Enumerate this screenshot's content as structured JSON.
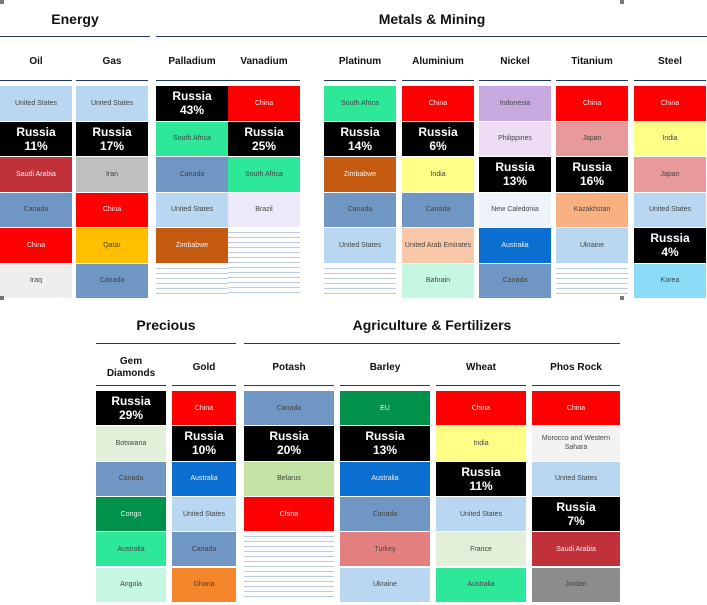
{
  "chart_data": {
    "type": "table",
    "panels": [
      {
        "sections": [
          {
            "title": "Energy"
          },
          {
            "title": "Metals & Mining"
          }
        ],
        "columns": [
          {
            "name": "Oil",
            "cells": [
              {
                "label": "United States",
                "color": "#b9d7f0"
              },
              {
                "label": "Russia",
                "value": "11%",
                "russia": true
              },
              {
                "label": "Saudi Arabia",
                "color": "#c0313a"
              },
              {
                "label": "Canada",
                "color": "#7096c4"
              },
              {
                "label": "China",
                "color": "#ff0000"
              },
              {
                "label": "Iraq",
                "color": "#eeeeee"
              }
            ]
          },
          {
            "name": "Gas",
            "cells": [
              {
                "label": "United States",
                "color": "#b9d7f0"
              },
              {
                "label": "Russia",
                "value": "17%",
                "russia": true
              },
              {
                "label": "Iran",
                "color": "#bfbfbf"
              },
              {
                "label": "China",
                "color": "#ff0000"
              },
              {
                "label": "Qatar",
                "color": "#ffc000"
              },
              {
                "label": "Canada",
                "color": "#7096c4"
              }
            ]
          },
          {
            "name": "Palladium",
            "cells": [
              {
                "label": "Russia",
                "value": "43%",
                "russia": true
              },
              {
                "label": "South Africa",
                "color": "#2ee89a"
              },
              {
                "label": "Canada",
                "color": "#7096c4"
              },
              {
                "label": "United States",
                "color": "#b9d7f0"
              },
              {
                "label": "Zimbabwe",
                "color": "#c55a11"
              }
            ]
          },
          {
            "name": "Vanadium",
            "cells": [
              {
                "label": "China",
                "color": "#ff0000"
              },
              {
                "label": "Russia",
                "value": "25%",
                "russia": true
              },
              {
                "label": "South Africa",
                "color": "#2ee89a"
              },
              {
                "label": "Brazil",
                "color": "#efeafa"
              }
            ]
          },
          {
            "name": "Platinum",
            "cells": [
              {
                "label": "South Africa",
                "color": "#2ee89a"
              },
              {
                "label": "Russia",
                "value": "14%",
                "russia": true
              },
              {
                "label": "Zimbabwe",
                "color": "#c55a11"
              },
              {
                "label": "Canada",
                "color": "#7096c4"
              },
              {
                "label": "United States",
                "color": "#b9d7f0"
              }
            ]
          },
          {
            "name": "Aluminium",
            "cells": [
              {
                "label": "China",
                "color": "#ff0000"
              },
              {
                "label": "Russia",
                "value": "6%",
                "russia": true
              },
              {
                "label": "India",
                "color": "#ffff88"
              },
              {
                "label": "Canada",
                "color": "#7096c4"
              },
              {
                "label": "United Arab Emirates",
                "color": "#f9c8a8"
              },
              {
                "label": "Bahrain",
                "color": "#c6f7e2"
              }
            ]
          },
          {
            "name": "Nickel",
            "cells": [
              {
                "label": "Indonesia",
                "color": "#c7a9e0"
              },
              {
                "label": "Philippines",
                "color": "#eedcf5"
              },
              {
                "label": "Russia",
                "value": "13%",
                "russia": true
              },
              {
                "label": "New Caledonia",
                "color": "#edf2fb"
              },
              {
                "label": "Australia",
                "color": "#0a6fd0"
              },
              {
                "label": "Canada",
                "color": "#7096c4"
              }
            ]
          },
          {
            "name": "Titanium",
            "cells": [
              {
                "label": "China",
                "color": "#ff0000"
              },
              {
                "label": "Japan",
                "color": "#e89a9a"
              },
              {
                "label": "Russia",
                "value": "16%",
                "russia": true
              },
              {
                "label": "Kazakhstan",
                "color": "#f9b080"
              },
              {
                "label": "Ukraine",
                "color": "#b9d7f0"
              }
            ]
          },
          {
            "name": "Steel",
            "cells": [
              {
                "label": "China",
                "color": "#ff0000"
              },
              {
                "label": "India",
                "color": "#ffff88"
              },
              {
                "label": "Japan",
                "color": "#e89a9a"
              },
              {
                "label": "United States",
                "color": "#b9d7f0"
              },
              {
                "label": "Russia",
                "value": "4%",
                "russia": true
              },
              {
                "label": "Korea",
                "color": "#8adcf7"
              }
            ]
          }
        ]
      },
      {
        "sections": [
          {
            "title": "Precious"
          },
          {
            "title": "Agriculture & Fertilizers"
          }
        ],
        "columns": [
          {
            "name": "Gem Diamonds",
            "cells": [
              {
                "label": "Russia",
                "value": "29%",
                "russia": true
              },
              {
                "label": "Botswana",
                "color": "#e2efd9"
              },
              {
                "label": "Canada",
                "color": "#7096c4"
              },
              {
                "label": "Congo",
                "color": "#00914a"
              },
              {
                "label": "Australia",
                "color": "#2ee89a"
              },
              {
                "label": "Angola",
                "color": "#c6f7e2"
              }
            ]
          },
          {
            "name": "Gold",
            "cells": [
              {
                "label": "China",
                "color": "#ff0000"
              },
              {
                "label": "Russia",
                "value": "10%",
                "russia": true
              },
              {
                "label": "Australia",
                "color": "#0a6fd0"
              },
              {
                "label": "United States",
                "color": "#b9d7f0"
              },
              {
                "label": "Canada",
                "color": "#7096c4"
              },
              {
                "label": "Ghana",
                "color": "#f4852a"
              }
            ]
          },
          {
            "name": "Potash",
            "cells": [
              {
                "label": "Canada",
                "color": "#7096c4"
              },
              {
                "label": "Russia",
                "value": "20%",
                "russia": true
              },
              {
                "label": "Belarus",
                "color": "#c3e3a4"
              },
              {
                "label": "China",
                "color": "#ff0000"
              }
            ]
          },
          {
            "name": "Barley",
            "cells": [
              {
                "label": "EU",
                "color": "#00914a"
              },
              {
                "label": "Russia",
                "value": "13%",
                "russia": true
              },
              {
                "label": "Australia",
                "color": "#0a6fd0"
              },
              {
                "label": "Canada",
                "color": "#7096c4"
              },
              {
                "label": "Turkey",
                "color": "#e37f7f"
              },
              {
                "label": "Ukraine",
                "color": "#b9d7f0"
              }
            ]
          },
          {
            "name": "Wheat",
            "cells": [
              {
                "label": "China",
                "color": "#ff0000"
              },
              {
                "label": "India",
                "color": "#ffff88"
              },
              {
                "label": "Russia",
                "value": "11%",
                "russia": true
              },
              {
                "label": "United States",
                "color": "#b9d7f0"
              },
              {
                "label": "France",
                "color": "#e2efd9"
              },
              {
                "label": "Australia",
                "color": "#2ee89a"
              }
            ]
          },
          {
            "name": "Phos Rock",
            "cells": [
              {
                "label": "China",
                "color": "#ff0000"
              },
              {
                "label": "Morocco and Western Sahara",
                "color": "#f2f2f2"
              },
              {
                "label": "United States",
                "color": "#b9d7f0"
              },
              {
                "label": "Russia",
                "value": "7%",
                "russia": true
              },
              {
                "label": "Saudi Arabia",
                "color": "#c0313a"
              },
              {
                "label": "Jordan",
                "color": "#8c8c8c"
              }
            ]
          }
        ]
      }
    ]
  }
}
